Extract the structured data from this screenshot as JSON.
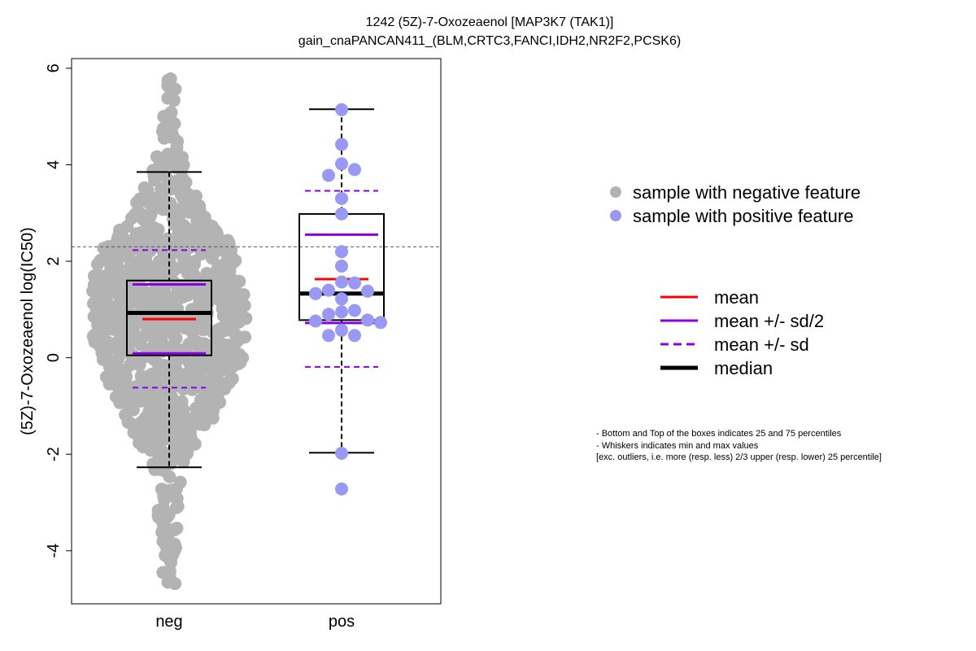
{
  "chart_data": {
    "type": "scatter",
    "title": "1242 (5Z)-7-Oxozeaenol [MAP3K7 (TAK1)]",
    "subtitle": "gain_cnaPANCAN411_(BLM,CRTC3,FANCI,IDH2,NR2F2,PCSK6)",
    "ylabel": "(5Z)-7-Oxozeaenol log(IC50)",
    "xlabel": "",
    "ylim": [
      -5.1,
      6.2
    ],
    "yticks": [
      -4,
      -2,
      0,
      2,
      4,
      6
    ],
    "categories": [
      "neg",
      "pos"
    ],
    "reference_line_y": 2.3,
    "colors": {
      "neg_points": "#b3b3b3",
      "pos_points": "#9999f5",
      "mean": "#ff0000",
      "sd": "#8a00e6",
      "median": "#000000",
      "box": "#000000",
      "reference_line": "#555555"
    },
    "groups": [
      {
        "name": "neg",
        "box": {
          "q1": 0.05,
          "median": 0.93,
          "q3": 1.6,
          "whisker_low": -2.27,
          "whisker_high": 3.85
        },
        "mean": 0.8,
        "mean_plus_half_sd": 1.52,
        "mean_minus_half_sd": 0.09,
        "mean_plus_sd": 2.23,
        "mean_minus_sd": -0.62,
        "distribution": {
          "count": 900,
          "density": [
            [
              -4.7,
              0.03
            ],
            [
              -4.2,
              0.07
            ],
            [
              -3.6,
              0.1
            ],
            [
              -3.2,
              0.16
            ],
            [
              -2.8,
              0.1
            ],
            [
              -2.3,
              0.22
            ],
            [
              -1.8,
              0.38
            ],
            [
              -1.3,
              0.55
            ],
            [
              -0.6,
              0.8
            ],
            [
              0.0,
              0.95
            ],
            [
              0.6,
              1.0
            ],
            [
              1.2,
              1.0
            ],
            [
              1.8,
              0.98
            ],
            [
              2.3,
              0.85
            ],
            [
              2.8,
              0.55
            ],
            [
              3.3,
              0.4
            ],
            [
              3.8,
              0.24
            ],
            [
              4.3,
              0.14
            ],
            [
              4.8,
              0.06
            ],
            [
              5.4,
              0.02
            ],
            [
              5.8,
              0.02
            ]
          ]
        },
        "points_extreme": [
          5.75,
          5.78,
          5.38,
          4.85,
          4.75,
          -4.45,
          -4.68,
          -4.52,
          -4.12,
          -3.86,
          -3.62
        ]
      },
      {
        "name": "pos",
        "box": {
          "q1": 0.78,
          "median": 1.33,
          "q3": 2.98,
          "whisker_low": -1.97,
          "whisker_high": 5.15
        },
        "mean": 1.63,
        "mean_plus_half_sd": 2.55,
        "mean_minus_half_sd": 0.72,
        "mean_plus_sd": 3.46,
        "mean_minus_sd": -0.19,
        "points": [
          5.14,
          4.42,
          4.02,
          3.9,
          3.78,
          3.3,
          2.98,
          2.2,
          1.9,
          1.57,
          1.55,
          1.4,
          1.38,
          1.33,
          1.22,
          0.98,
          0.95,
          0.9,
          0.78,
          0.76,
          0.73,
          0.57,
          0.46,
          0.46,
          -1.98,
          -2.72
        ]
      }
    ],
    "legend": {
      "placement": "right",
      "points": [
        {
          "label": "sample with negative feature",
          "color": "#b3b3b3"
        },
        {
          "label": "sample with positive feature",
          "color": "#9999f5"
        }
      ],
      "lines": [
        {
          "label": "mean",
          "color": "#ff0000",
          "style": "solid"
        },
        {
          "label": "mean +/- sd/2",
          "color": "#8a00e6",
          "style": "solid"
        },
        {
          "label": "mean +/- sd",
          "color": "#8a00e6",
          "style": "dashed"
        },
        {
          "label": "median",
          "color": "#000000",
          "style": "thick"
        }
      ]
    },
    "notes": [
      "- Bottom and Top of the boxes indicates 25 and 75 percentiles",
      "- Whiskers indicates min and max values",
      "[exc. outliers, i.e. more (resp. less) 2/3 upper (resp. lower) 25 percentile]"
    ]
  }
}
